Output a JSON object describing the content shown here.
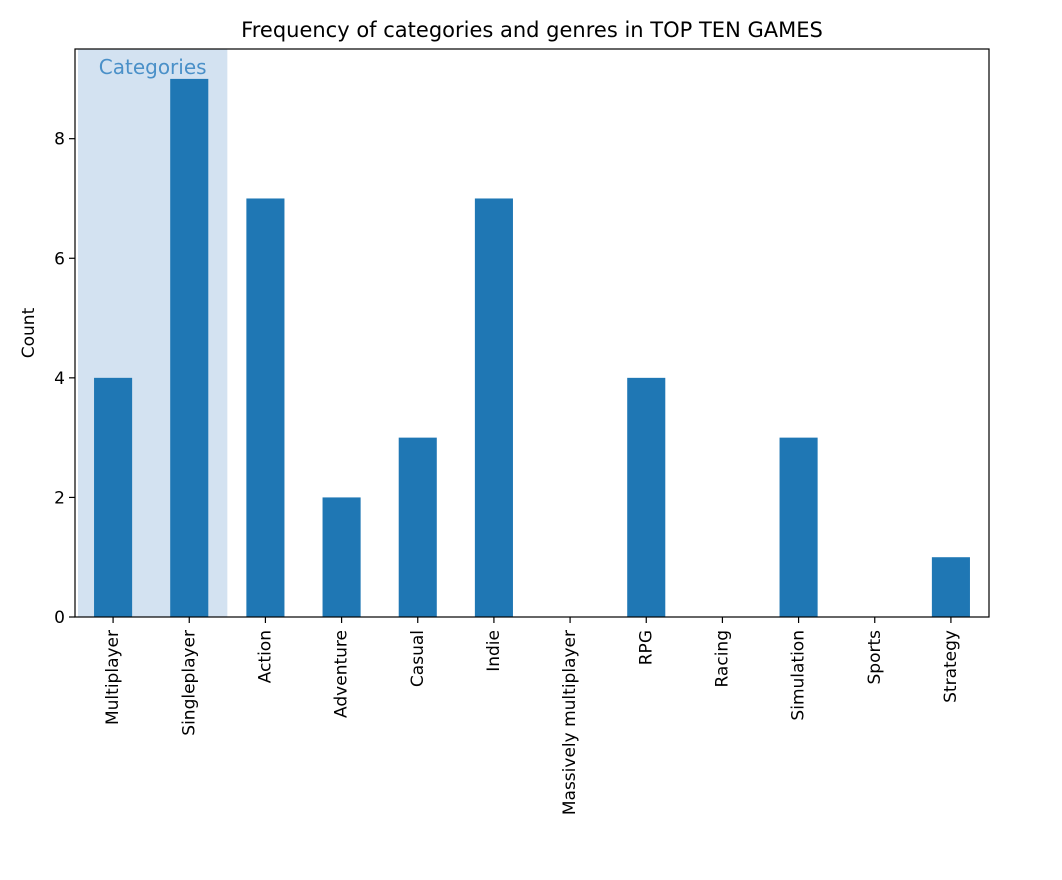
{
  "chart_data": {
    "type": "bar",
    "title": "Frequency of categories and genres in TOP TEN GAMES",
    "xlabel": "",
    "ylabel": "Count",
    "categories": [
      "Multiplayer",
      "Singleplayer",
      "Action",
      "Adventure",
      "Casual",
      "Indie",
      "Massively multiplayer",
      "RPG",
      "Racing",
      "Simulation",
      "Sports",
      "Strategy"
    ],
    "values": [
      4,
      9,
      7,
      2,
      3,
      7,
      0,
      4,
      0,
      3,
      0,
      1
    ],
    "ylim": [
      0,
      9.5
    ],
    "yticks": [
      0,
      2,
      4,
      6,
      8
    ],
    "grid": false,
    "bar_color": "#1f77b4",
    "highlight": {
      "label": "Categories",
      "from_category": "Multiplayer",
      "to_category": "Singleplayer",
      "fill_color": "#d3e2f1",
      "text_color": "#4a90c8"
    }
  }
}
